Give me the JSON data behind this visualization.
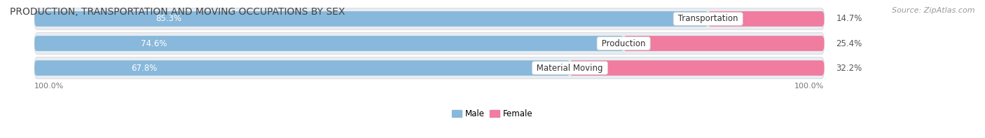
{
  "title": "PRODUCTION, TRANSPORTATION AND MOVING OCCUPATIONS BY SEX",
  "source": "Source: ZipAtlas.com",
  "categories": [
    "Transportation",
    "Production",
    "Material Moving"
  ],
  "male_pct": [
    85.3,
    74.6,
    67.8
  ],
  "female_pct": [
    14.7,
    25.4,
    32.2
  ],
  "male_color": "#88b8db",
  "female_color": "#f07ca0",
  "label_color_male": "#ffffff",
  "row_bg_color": "#e8ecf0",
  "title_fontsize": 10,
  "source_fontsize": 8,
  "bar_label_fontsize": 8.5,
  "cat_label_fontsize": 8.5,
  "bar_height": 0.62,
  "background_color": "#ffffff",
  "axis_label_left": "100.0%",
  "axis_label_right": "100.0%",
  "legend_male": "Male",
  "legend_female": "Female",
  "total_width": 100.0,
  "xlim_left": -4.0,
  "xlim_right": 120.0
}
